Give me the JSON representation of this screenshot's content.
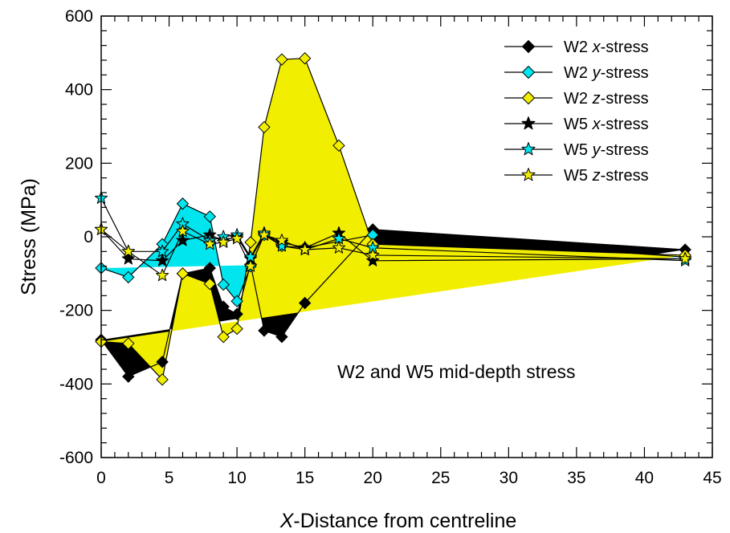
{
  "chart_data": {
    "type": "line",
    "title": "",
    "annotation": "W2 and W5 mid-depth stress",
    "xlabel_italic": "X",
    "xlabel_rest": "-Distance from centreline",
    "ylabel": "Stress (MPa)",
    "xlim": [
      0,
      45
    ],
    "ylim": [
      -600,
      600
    ],
    "xticks": [
      0,
      5,
      10,
      15,
      20,
      25,
      30,
      35,
      40,
      45
    ],
    "yticks": [
      -600,
      -400,
      -200,
      0,
      200,
      400,
      600
    ],
    "grid": false,
    "legend_position": "top-right",
    "colors": {
      "black": "#000000",
      "cyan": "#00e5ee",
      "yellow": "#f2ee00"
    },
    "series": [
      {
        "name": "W2 x-stress",
        "name_prefix": "W2 ",
        "name_italic": "x",
        "name_suffix": "-stress",
        "marker": "diamond",
        "color": "#000000",
        "x": [
          0,
          2,
          4.5,
          6,
          8,
          9,
          10,
          11,
          12,
          13.3,
          15,
          20,
          43
        ],
        "y": [
          -280,
          -380,
          -340,
          -100,
          -85,
          -190,
          -210,
          -75,
          -255,
          -272,
          -180,
          20,
          -35
        ]
      },
      {
        "name": "W2 y-stress",
        "name_prefix": "W2 ",
        "name_italic": "y",
        "name_suffix": "-stress",
        "marker": "diamond",
        "color": "#00e5ee",
        "x": [
          0,
          2,
          4.5,
          6,
          8,
          9,
          10,
          11,
          12,
          13.3,
          15,
          20,
          43
        ],
        "y": [
          -85,
          -110,
          -20,
          90,
          55,
          -130,
          -175,
          -80,
          5,
          -25,
          -30,
          5,
          -55
        ]
      },
      {
        "name": "W2 z-stress",
        "name_prefix": "W2 ",
        "name_italic": "z",
        "name_suffix": "-stress",
        "marker": "diamond",
        "color": "#f2ee00",
        "x": [
          0,
          2,
          4.5,
          6,
          8,
          9,
          10,
          11,
          12,
          13.3,
          15,
          17.5,
          20,
          43
        ],
        "y": [
          -285,
          -290,
          -388,
          -100,
          -128,
          -272,
          -250,
          -15,
          298,
          482,
          485,
          248,
          -20,
          -50
        ]
      },
      {
        "name": "W5 x-stress",
        "name_prefix": "W5 ",
        "name_italic": "x",
        "name_suffix": "-stress",
        "marker": "star",
        "color": "#000000",
        "x": [
          0,
          2,
          4.5,
          6,
          8,
          9,
          10,
          11,
          12,
          13.3,
          15,
          17.5,
          20,
          43
        ],
        "y": [
          20,
          -60,
          -65,
          -10,
          5,
          -10,
          0,
          -60,
          5,
          -15,
          -30,
          10,
          -65,
          -60
        ]
      },
      {
        "name": "W5 y-stress",
        "name_prefix": "W5 ",
        "name_italic": "y",
        "name_suffix": "-stress",
        "marker": "star",
        "color": "#00e5ee",
        "x": [
          0,
          2,
          4.5,
          6,
          8,
          9,
          10,
          11,
          12,
          13.3,
          15,
          17.5,
          20,
          43
        ],
        "y": [
          105,
          -40,
          -40,
          35,
          -10,
          0,
          5,
          -55,
          10,
          -25,
          -35,
          -5,
          -30,
          -65
        ]
      },
      {
        "name": "W5 z-stress",
        "name_prefix": "W5 ",
        "name_italic": "z",
        "name_suffix": "-stress",
        "marker": "star",
        "color": "#f2ee00",
        "x": [
          0,
          2,
          4.5,
          6,
          8,
          9,
          10,
          11,
          12,
          13.3,
          15,
          17.5,
          20,
          43
        ],
        "y": [
          20,
          -40,
          -105,
          15,
          -20,
          -15,
          -5,
          -80,
          5,
          -10,
          -35,
          -30,
          -50,
          -60
        ]
      }
    ]
  }
}
